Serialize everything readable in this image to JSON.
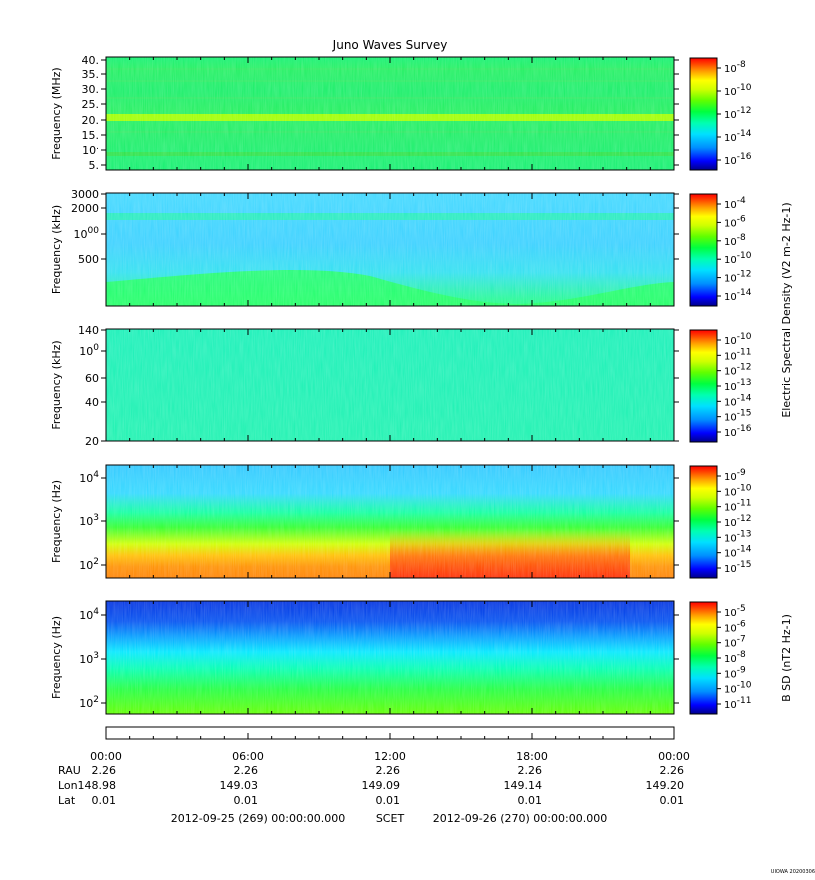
{
  "colors": {
    "scale": [
      "#00008b",
      "#0000ff",
      "#0080ff",
      "#00d0ff",
      "#00ffc0",
      "#00ff40",
      "#40ff00",
      "#c0ff00",
      "#ffff00",
      "#ffa000",
      "#ff5000",
      "#ff0000"
    ]
  },
  "chart_data": [
    {
      "type": "heatmap",
      "title": "Juno Waves Survey",
      "ylabel": "Frequency (MHz)",
      "y_ticks": [
        "5.",
        "10.",
        "15.",
        "20.",
        "25.",
        "30.",
        "35.",
        "40."
      ],
      "ylim": [
        3.5,
        40.5
      ],
      "colorbar_ticks": [
        "10-8",
        "10-10",
        "10-12",
        "10-14",
        "10-16"
      ],
      "colorbar_label": ""
    },
    {
      "type": "heatmap",
      "ylabel": "Frequency (kHz)",
      "y_ticks": [
        "500",
        "1000",
        "2000",
        "3000"
      ],
      "ylim": [
        140,
        3000
      ],
      "y_scale": "log",
      "colorbar_ticks": [
        "10-4",
        "10-6",
        "10-8",
        "10-10",
        "10-12",
        "10-14"
      ],
      "colorbar_label": ""
    },
    {
      "type": "heatmap",
      "ylabel": "Frequency (kHz)",
      "y_ticks": [
        "20",
        "40",
        "60",
        "100",
        "140"
      ],
      "ylim": [
        20,
        140
      ],
      "y_scale": "log",
      "colorbar_ticks": [
        "10-10",
        "10-11",
        "10-12",
        "10-13",
        "10-14",
        "10-15",
        "10-16"
      ],
      "colorbar_label": "Electric Spectral Density (V2 m-2 Hz-1)"
    },
    {
      "type": "heatmap",
      "ylabel": "Frequency (Hz)",
      "y_ticks": [
        "102",
        "103",
        "104"
      ],
      "ylim": [
        50,
        20000
      ],
      "y_scale": "log",
      "colorbar_ticks": [
        "10-9",
        "10-10",
        "10-11",
        "10-12",
        "10-13",
        "10-14",
        "10-15"
      ],
      "colorbar_label": ""
    },
    {
      "type": "heatmap",
      "ylabel": "Frequency (Hz)",
      "y_ticks": [
        "102",
        "103",
        "104"
      ],
      "ylim": [
        50,
        20000
      ],
      "y_scale": "log",
      "colorbar_ticks": [
        "10-5",
        "10-6",
        "10-7",
        "10-8",
        "10-9",
        "10-10",
        "10-11"
      ],
      "colorbar_label": "B SD (nT2 Hz-1)"
    }
  ],
  "x_axis": {
    "ticks": [
      "00:00",
      "06:00",
      "12:00",
      "18:00",
      "00:00"
    ],
    "rows": [
      {
        "label": "RAU",
        "values": [
          "2.26",
          "2.26",
          "2.26",
          "2.26",
          "2.26"
        ]
      },
      {
        "label": "Lon",
        "values": [
          "148.98",
          "149.03",
          "149.09",
          "149.14",
          "149.20"
        ]
      },
      {
        "label": "Lat",
        "values": [
          "0.01",
          "0.01",
          "0.01",
          "0.01",
          "0.01"
        ]
      }
    ],
    "footer_start": "2012-09-25 (269) 00:00:00.000",
    "footer_mid": "SCET",
    "footer_end": "2012-09-26 (270) 00:00:00.000"
  },
  "corner_stamp": "UIOWA 20200306"
}
